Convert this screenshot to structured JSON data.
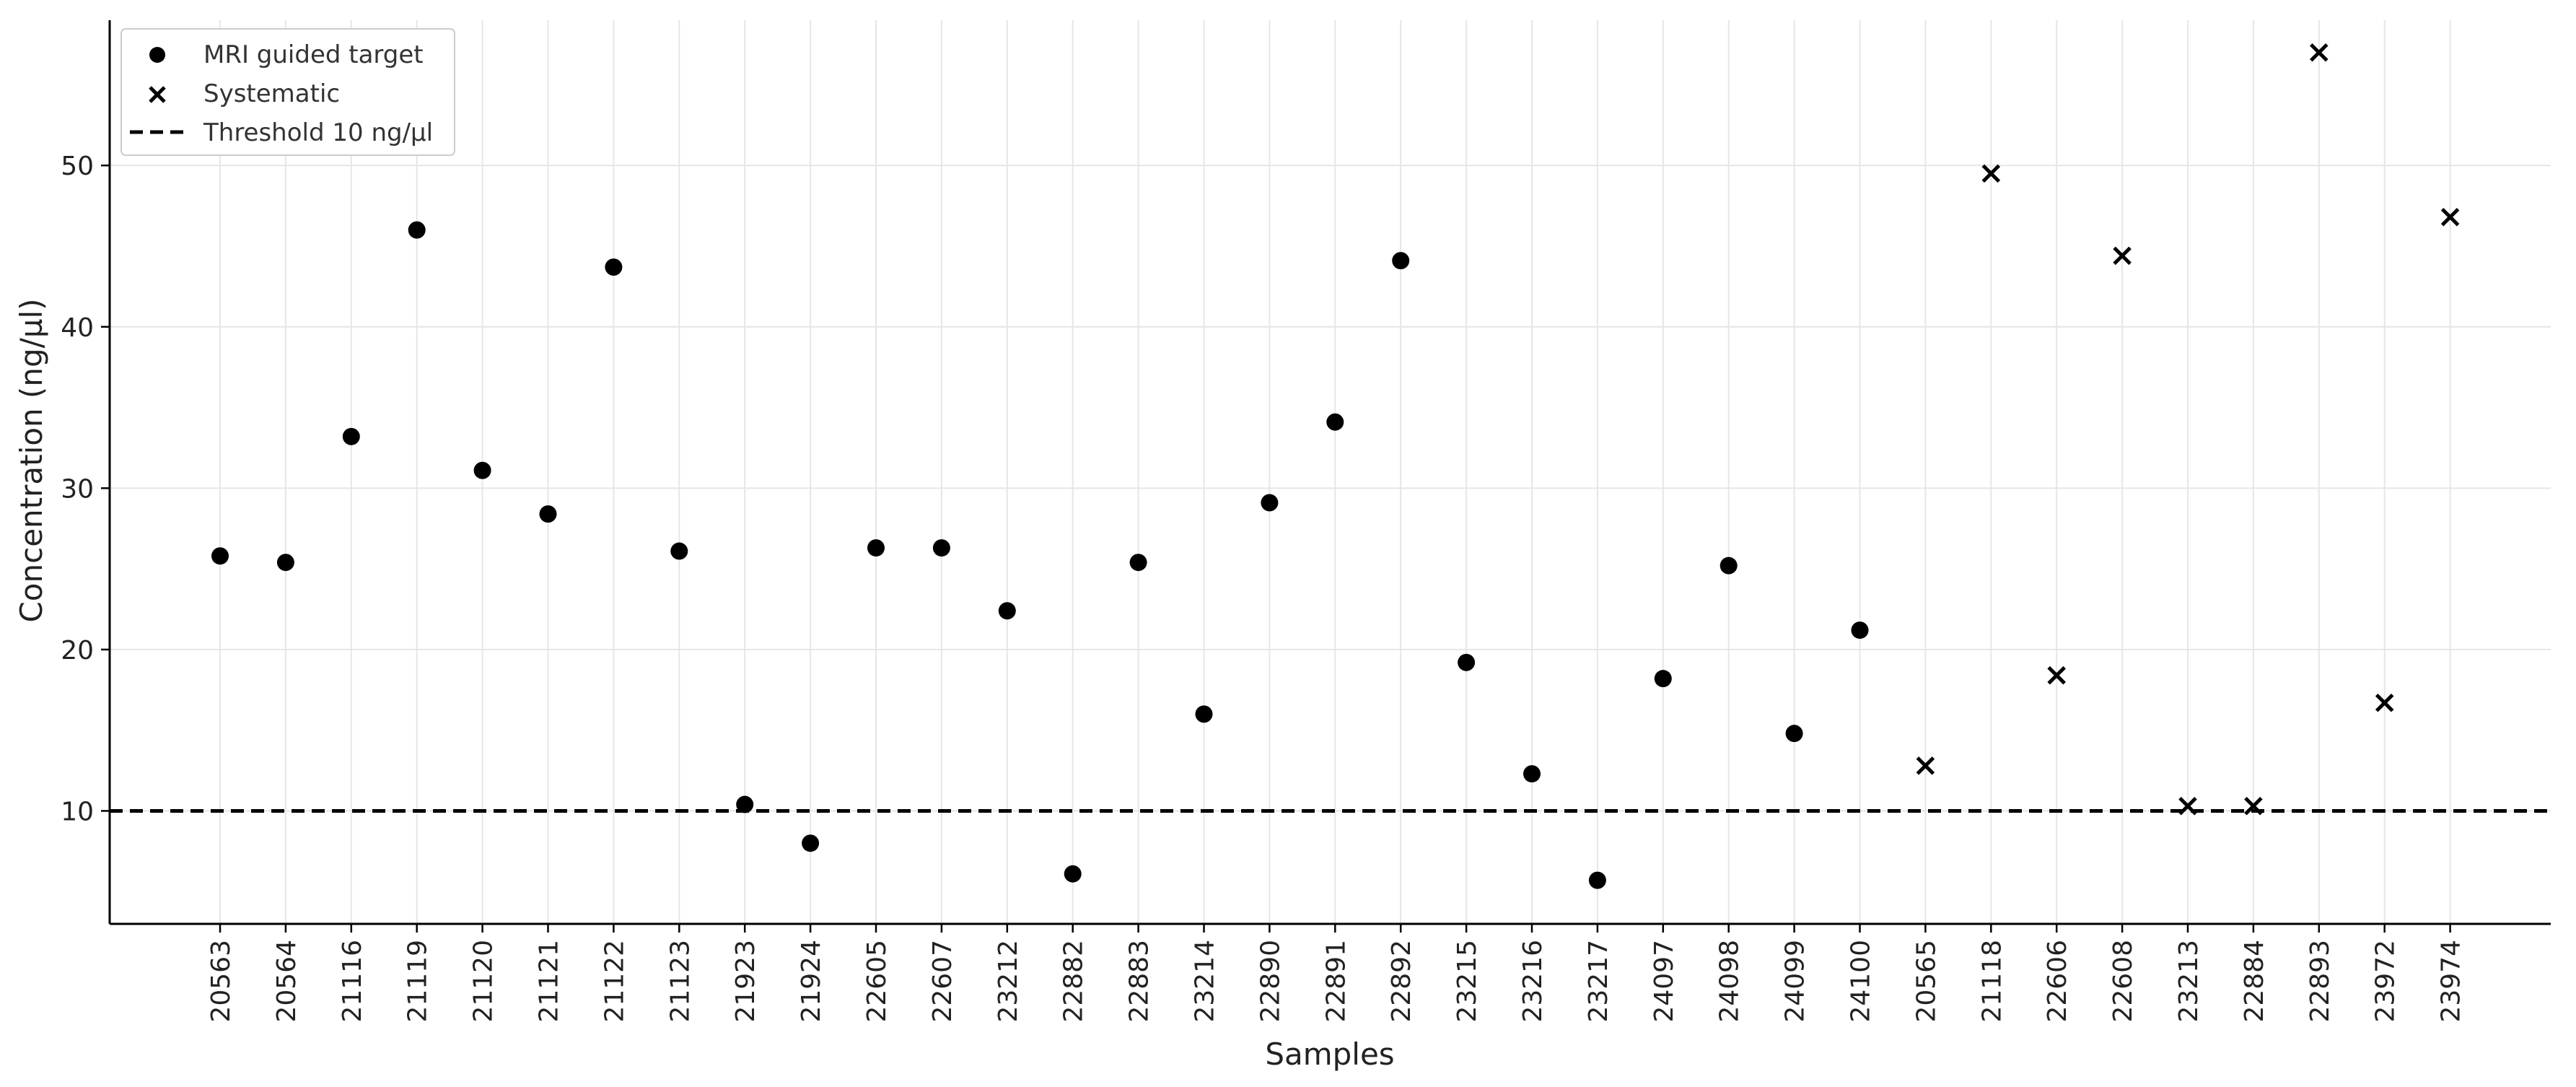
{
  "chart_data": {
    "type": "scatter",
    "xlabel": "Samples",
    "ylabel": "Concentration (ng/µl)",
    "ylim": [
      3,
      59
    ],
    "yticks": [
      10,
      20,
      30,
      40,
      50
    ],
    "grid": true,
    "legend_position": "top-left",
    "categories": [
      "20563",
      "20564",
      "21116",
      "21119",
      "21120",
      "21121",
      "21122",
      "21123",
      "21923",
      "21924",
      "22605",
      "22607",
      "23212",
      "22882",
      "22883",
      "23214",
      "22890",
      "22891",
      "22892",
      "23215",
      "23216",
      "23217",
      "24097",
      "24098",
      "24099",
      "24100",
      "20565",
      "21118",
      "22606",
      "22608",
      "23213",
      "22884",
      "22893",
      "23972",
      "23974"
    ],
    "series": [
      {
        "name": "MRI guided target",
        "marker": "circle",
        "color": "#000000",
        "x": [
          "20563",
          "20564",
          "21116",
          "21119",
          "21120",
          "21121",
          "21122",
          "21123",
          "21923",
          "21924",
          "22605",
          "22607",
          "23212",
          "22882",
          "22883",
          "23214",
          "22890",
          "22891",
          "22892",
          "23215",
          "23216",
          "23217",
          "24097",
          "24098",
          "24099",
          "24100"
        ],
        "values": [
          25.8,
          25.4,
          33.2,
          46.0,
          31.1,
          28.4,
          43.7,
          26.1,
          10.4,
          8.0,
          26.3,
          26.3,
          22.4,
          6.1,
          25.4,
          16.0,
          29.1,
          34.1,
          44.1,
          19.2,
          12.3,
          5.7,
          18.2,
          25.2,
          14.8,
          21.2
        ]
      },
      {
        "name": "Systematic",
        "marker": "x",
        "color": "#000000",
        "x": [
          "20565",
          "21118",
          "22606",
          "22608",
          "23213",
          "22884",
          "22893",
          "23972",
          "23974"
        ],
        "values": [
          12.8,
          49.5,
          18.4,
          44.4,
          10.3,
          10.3,
          57.0,
          16.7,
          46.8
        ]
      }
    ],
    "threshold": {
      "name": "Threshold 10 ng/µl",
      "value": 10,
      "style": "dashed",
      "color": "#000000"
    }
  }
}
